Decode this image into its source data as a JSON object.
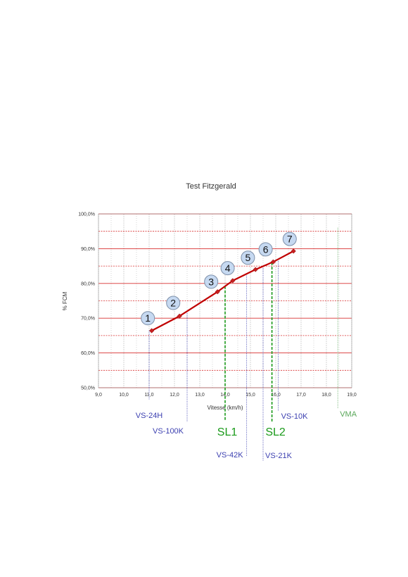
{
  "colors": {
    "major_grid": "#d83030",
    "minor_grid": "#d83030",
    "vertical_grid": "#b8b8b8",
    "line": "#c00000",
    "marker": "#c82020",
    "circle_fill": "#c6d9f1",
    "circle_stroke": "#7d8fa8",
    "ref_blue": "#3b3fb0",
    "ref_green": "#1a9a1a",
    "ref_vma": "#5aa85a"
  },
  "chart_data": {
    "type": "line",
    "title": "Test Fitzgerald",
    "xlabel": "Vitesse (km/h)",
    "ylabel": "% FCM",
    "xlim": [
      9,
      19
    ],
    "ylim": [
      50,
      100
    ],
    "x_ticks": [
      "9,0",
      "10,0",
      "11,0",
      "12,0",
      "13,0",
      "14,0",
      "15,0",
      "16,0",
      "17,0",
      "18,0",
      "19,0"
    ],
    "y_ticks": [
      "50,0%",
      "60,0%",
      "70,0%",
      "80,0%",
      "90,0%",
      "100,0%"
    ],
    "grid": true,
    "series": [
      {
        "x": [
          11.1,
          12.2,
          13.7,
          14.3,
          15.2,
          15.9,
          16.7
        ],
        "y": [
          66.4,
          70.6,
          77.6,
          80.8,
          84.0,
          86.2,
          89.3
        ]
      }
    ],
    "point_labels": [
      {
        "label": "1",
        "x": 10.95,
        "y": 70.0
      },
      {
        "label": "2",
        "x": 11.95,
        "y": 74.4
      },
      {
        "label": "3",
        "x": 13.45,
        "y": 80.5
      },
      {
        "label": "4",
        "x": 14.1,
        "y": 84.4
      },
      {
        "label": "5",
        "x": 14.9,
        "y": 87.4
      },
      {
        "label": "6",
        "x": 15.6,
        "y": 89.8
      },
      {
        "label": "7",
        "x": 16.55,
        "y": 92.8
      }
    ],
    "reference_lines": [
      {
        "label": "VS-24H",
        "x": 11.0,
        "style": "blue-dotted"
      },
      {
        "label": "VS-100K",
        "x": 12.5,
        "style": "blue-dotted"
      },
      {
        "label": "SL1",
        "x": 14.0,
        "style": "green-dashed"
      },
      {
        "label": "VS-42K",
        "x": 14.85,
        "style": "blue-dotted"
      },
      {
        "label": "SL2",
        "x": 15.85,
        "style": "green-dashed"
      },
      {
        "label": "VS-21K",
        "x": 15.5,
        "style": "blue-dotted"
      },
      {
        "label": "VS-10K",
        "x": 16.1,
        "style": "blue-dotted"
      },
      {
        "label": "VMA",
        "x": 18.45,
        "style": "green-dotted"
      }
    ]
  }
}
